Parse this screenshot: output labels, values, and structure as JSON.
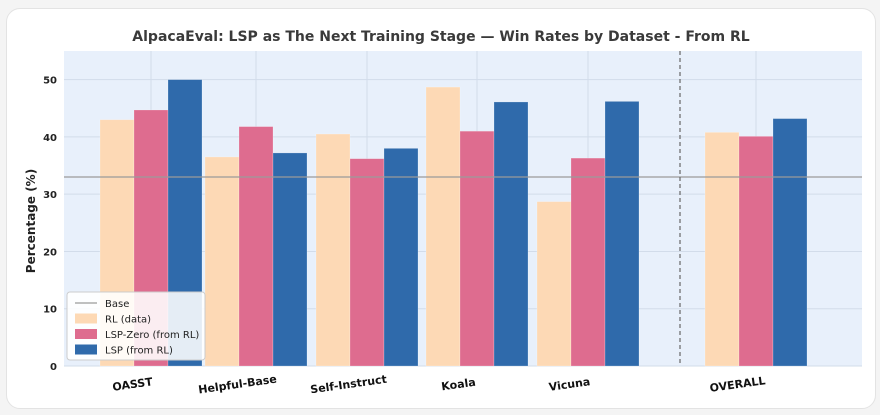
{
  "chart_data": {
    "type": "bar",
    "title": "AlpacaEval: LSP as The Next Training Stage  — Win Rates by Dataset - From RL",
    "ylabel": "Percentage (%)",
    "xlabel": "",
    "ylim": [
      0,
      55
    ],
    "yticks": [
      0,
      10,
      20,
      30,
      40,
      50
    ],
    "ytick_labels": [
      "0",
      "10",
      "20",
      "30",
      "40",
      "50"
    ],
    "categories": [
      "OASST",
      "Helpful-Base",
      "Self-Instruct",
      "Koala",
      "Vicuna",
      "OVERALL"
    ],
    "series": [
      {
        "name": "RL (data)",
        "color": "#fdd9b5",
        "values": [
          43.0,
          36.5,
          40.5,
          48.7,
          28.7,
          40.8
        ]
      },
      {
        "name": "LSP-Zero (from RL)",
        "color": "#de6c8f",
        "values": [
          44.7,
          41.8,
          36.2,
          41.0,
          36.3,
          40.1
        ]
      },
      {
        "name": "LSP (from RL)",
        "color": "#2f6aab",
        "values": [
          50.0,
          37.2,
          38.0,
          46.1,
          46.2,
          43.2
        ]
      }
    ],
    "base": {
      "name": "Base",
      "value": 33.0,
      "color": "#9a9a9a"
    },
    "separator_between": [
      "Vicuna",
      "OVERALL"
    ],
    "legend_position": "lower-left",
    "grid": true,
    "background": "#e8f0fb"
  }
}
